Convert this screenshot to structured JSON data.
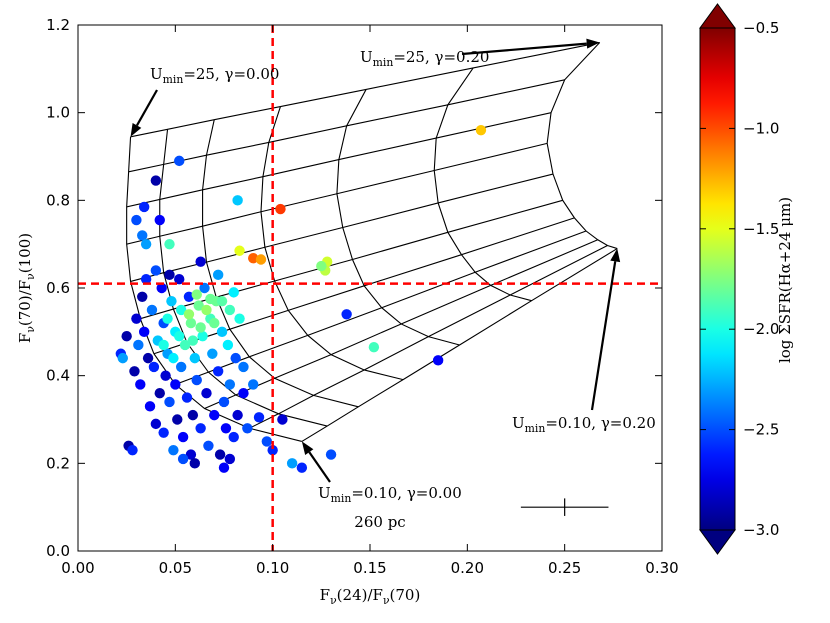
{
  "chart_data": {
    "type": "scatter",
    "xlabel": {
      "segments": [
        {
          "text": "F"
        },
        {
          "text": "ν",
          "sub": true
        },
        {
          "text": "(24)/F"
        },
        {
          "text": "ν",
          "sub": true
        },
        {
          "text": "(70)"
        }
      ]
    },
    "ylabel": {
      "segments": [
        {
          "text": "F"
        },
        {
          "text": "ν",
          "sub": true
        },
        {
          "text": "(70)/F"
        },
        {
          "text": "ν",
          "sub": true
        },
        {
          "text": "(100)"
        }
      ]
    },
    "xlim": [
      0,
      0.3
    ],
    "ylim": [
      0,
      1.2
    ],
    "xticks": [
      {
        "value": 0,
        "label": "0.00"
      },
      0.05,
      {
        "value": 0.1,
        "label": "0.10"
      },
      0.15,
      {
        "value": 0.2,
        "label": "0.20"
      },
      0.25,
      {
        "value": 0.3,
        "label": "0.30"
      }
    ],
    "yticks": [
      {
        "value": 0,
        "label": "0.0"
      },
      0.2,
      0.4,
      0.6,
      0.8,
      {
        "value": 1,
        "label": "1.0"
      },
      1.2
    ],
    "colormap": "jet",
    "clim": [
      -3,
      -0.5
    ],
    "cticks": [
      {
        "value": -3,
        "label": "−3.0"
      },
      {
        "value": -2.5,
        "label": "−2.5"
      },
      {
        "value": -2,
        "label": "−2.0"
      },
      {
        "value": -1.5,
        "label": "−1.5"
      },
      {
        "value": -1,
        "label": "−1.0"
      },
      {
        "value": -0.5,
        "label": "−0.5"
      }
    ],
    "colorbar_label": "log ΣSFR(Hα+24 μm)",
    "x": [
      0.022,
      0.023,
      0.025,
      0.026,
      0.028,
      0.029,
      0.03,
      0.031,
      0.032,
      0.033,
      0.034,
      0.035,
      0.036,
      0.037,
      0.038,
      0.039,
      0.04,
      0.04,
      0.041,
      0.042,
      0.043,
      0.044,
      0.044,
      0.045,
      0.046,
      0.047,
      0.047,
      0.048,
      0.049,
      0.05,
      0.05,
      0.051,
      0.052,
      0.053,
      0.053,
      0.054,
      0.055,
      0.056,
      0.057,
      0.058,
      0.058,
      0.059,
      0.06,
      0.061,
      0.062,
      0.063,
      0.064,
      0.065,
      0.066,
      0.067,
      0.068,
      0.069,
      0.07,
      0.071,
      0.072,
      0.073,
      0.074,
      0.075,
      0.076,
      0.077,
      0.078,
      0.08,
      0.081,
      0.082,
      0.083,
      0.085,
      0.087,
      0.06,
      0.075,
      0.078,
      0.054,
      0.07,
      0.066,
      0.063,
      0.059,
      0.057,
      0.052,
      0.061,
      0.068,
      0.074,
      0.046,
      0.044,
      0.049,
      0.207,
      0.104,
      0.09,
      0.094,
      0.083,
      0.082,
      0.128,
      0.127,
      0.125,
      0.052,
      0.04,
      0.034,
      0.03,
      0.042,
      0.033,
      0.035,
      0.047,
      0.152,
      0.185,
      0.138,
      0.13,
      0.11,
      0.115,
      0.085,
      0.09,
      0.093,
      0.105,
      0.097,
      0.1,
      0.08,
      0.078,
      0.072,
      0.063
    ],
    "values": [
      0.45,
      0.44,
      0.49,
      0.24,
      0.23,
      0.41,
      0.53,
      0.47,
      0.38,
      0.58,
      0.5,
      0.62,
      0.44,
      0.33,
      0.55,
      0.42,
      0.29,
      0.64,
      0.48,
      0.36,
      0.6,
      0.52,
      0.27,
      0.4,
      0.45,
      0.63,
      0.34,
      0.57,
      0.23,
      0.5,
      0.38,
      0.3,
      0.62,
      0.55,
      0.42,
      0.26,
      0.47,
      0.35,
      0.58,
      0.52,
      0.22,
      0.31,
      0.44,
      0.39,
      0.56,
      0.28,
      0.49,
      0.6,
      0.36,
      0.24,
      0.53,
      0.45,
      0.31,
      0.57,
      0.41,
      0.22,
      0.5,
      0.34,
      0.28,
      0.47,
      0.38,
      0.26,
      0.44,
      0.31,
      0.53,
      0.36,
      0.28,
      0.2,
      0.19,
      0.21,
      0.21,
      0.52,
      0.55,
      0.51,
      0.48,
      0.54,
      0.49,
      0.585,
      0.575,
      0.57,
      0.53,
      0.47,
      0.44,
      0.96,
      0.78,
      0.668,
      0.665,
      0.685,
      0.8,
      0.66,
      0.64,
      0.65,
      0.89,
      0.845,
      0.785,
      0.755,
      0.755,
      0.72,
      0.7,
      0.7,
      0.465,
      0.435,
      0.54,
      0.22,
      0.2,
      0.19,
      0.42,
      0.38,
      0.305,
      0.3,
      0.25,
      0.23,
      0.59,
      0.55,
      0.63,
      0.66
    ],
    "c": [
      -2.6,
      -2.3,
      -2.9,
      -2.9,
      -2.6,
      -2.9,
      -2.8,
      -2.4,
      -2.7,
      -2.9,
      -2.7,
      -2.6,
      -2.9,
      -2.7,
      -2.4,
      -2.6,
      -2.8,
      -2.5,
      -2.2,
      -2.9,
      -2.7,
      -2.5,
      -2.6,
      -2.8,
      -2.3,
      -2.9,
      -2.5,
      -2.2,
      -2.4,
      -2.1,
      -2.7,
      -2.9,
      -2.8,
      -2,
      -2.4,
      -2.7,
      -1.9,
      -2.6,
      -2.6,
      -1.8,
      -2.8,
      -2.9,
      -2.2,
      -2.5,
      -1.8,
      -2.6,
      -2,
      -2.4,
      -2.8,
      -2.5,
      -1.9,
      -2.3,
      -2.7,
      -1.8,
      -2.6,
      -2.9,
      -2.2,
      -2.5,
      -2.7,
      -2.1,
      -2.4,
      -2.6,
      -2.5,
      -2.8,
      -2,
      -2.7,
      -2.5,
      -2.9,
      -2.7,
      -2.8,
      -2.5,
      -1.8,
      -1.7,
      -1.8,
      -1.9,
      -1.7,
      -2,
      -1.75,
      -1.8,
      -1.85,
      -2,
      -2,
      -2.1,
      -1.3,
      -0.95,
      -1.05,
      -1.2,
      -1.5,
      -2.2,
      -1.55,
      -1.6,
      -1.75,
      -2.5,
      -2.9,
      -2.6,
      -2.5,
      -2.7,
      -2.4,
      -2.3,
      -1.9,
      -1.9,
      -2.7,
      -2.6,
      -2.5,
      -2.3,
      -2.6,
      -2.4,
      -2.4,
      -2.6,
      -2.8,
      -2.5,
      -2.6,
      -2.1,
      -1.9,
      -2.3,
      -2.8
    ],
    "model_grid": [
      {
        "x": [
          0.027,
          0.026,
          0.025,
          0.025,
          0.027,
          0.032,
          0.039,
          0.05,
          0.065,
          0.088,
          0.115
        ],
        "y": [
          0.945,
          0.865,
          0.785,
          0.7,
          0.615,
          0.53,
          0.45,
          0.38,
          0.325,
          0.28,
          0.25
        ]
      },
      {
        "x": [
          0.046,
          0.044,
          0.042,
          0.042,
          0.044,
          0.049,
          0.056,
          0.067,
          0.081,
          0.103,
          0.128
        ],
        "y": [
          0.962,
          0.882,
          0.802,
          0.718,
          0.635,
          0.552,
          0.475,
          0.408,
          0.356,
          0.313,
          0.285
        ]
      },
      {
        "x": [
          0.07,
          0.066,
          0.064,
          0.064,
          0.066,
          0.071,
          0.078,
          0.088,
          0.101,
          0.121,
          0.144
        ],
        "y": [
          0.984,
          0.903,
          0.824,
          0.741,
          0.659,
          0.579,
          0.506,
          0.443,
          0.394,
          0.355,
          0.329
        ]
      },
      {
        "x": [
          0.104,
          0.098,
          0.095,
          0.094,
          0.096,
          0.101,
          0.108,
          0.118,
          0.13,
          0.147,
          0.167
        ],
        "y": [
          1.014,
          0.932,
          0.854,
          0.774,
          0.693,
          0.616,
          0.549,
          0.492,
          0.448,
          0.413,
          0.391
        ]
      },
      {
        "x": [
          0.148,
          0.138,
          0.134,
          0.133,
          0.136,
          0.141,
          0.147,
          0.156,
          0.166,
          0.18,
          0.196
        ],
        "y": [
          1.053,
          0.97,
          0.893,
          0.815,
          0.738,
          0.665,
          0.605,
          0.555,
          0.518,
          0.489,
          0.47
        ]
      },
      {
        "x": [
          0.203,
          0.19,
          0.184,
          0.183,
          0.185,
          0.19,
          0.197,
          0.204,
          0.212,
          0.222,
          0.233
        ],
        "y": [
          1.102,
          1.018,
          0.942,
          0.868,
          0.794,
          0.727,
          0.676,
          0.636,
          0.606,
          0.584,
          0.571
        ]
      },
      {
        "x": [
          0.268,
          0.25,
          0.243,
          0.241,
          0.244,
          0.249,
          0.255,
          0.261,
          0.267,
          0.272,
          0.277
        ],
        "y": [
          1.16,
          1.075,
          1.0,
          0.93,
          0.86,
          0.8,
          0.76,
          0.73,
          0.71,
          0.697,
          0.69
        ]
      }
    ],
    "ref_lines": {
      "x": 0.1,
      "y": 0.61,
      "color": "#ff0000"
    },
    "annotations": [
      {
        "segments": [
          {
            "text": "U"
          },
          {
            "text": "min",
            "sub": true
          },
          {
            "text": "=25, γ=0.00"
          }
        ],
        "xy": [
          0.027,
          0.945
        ]
      },
      {
        "segments": [
          {
            "text": "U"
          },
          {
            "text": "min",
            "sub": true
          },
          {
            "text": "=25, γ=0.20"
          }
        ],
        "xy": [
          0.268,
          1.16
        ]
      },
      {
        "segments": [
          {
            "text": "U"
          },
          {
            "text": "min",
            "sub": true
          },
          {
            "text": "=0.10, γ=0.00"
          }
        ],
        "xy": [
          0.115,
          0.25
        ]
      },
      {
        "segments": [
          {
            "text": "U"
          },
          {
            "text": "min",
            "sub": true
          },
          {
            "text": "=0.10, γ=0.20"
          }
        ],
        "xy": [
          0.277,
          0.69
        ]
      }
    ],
    "scale_label": "260 pc",
    "error_bar": {
      "x": 0.25,
      "y": 0.1,
      "xerr": 0.0225,
      "yerr": 0.02
    }
  }
}
